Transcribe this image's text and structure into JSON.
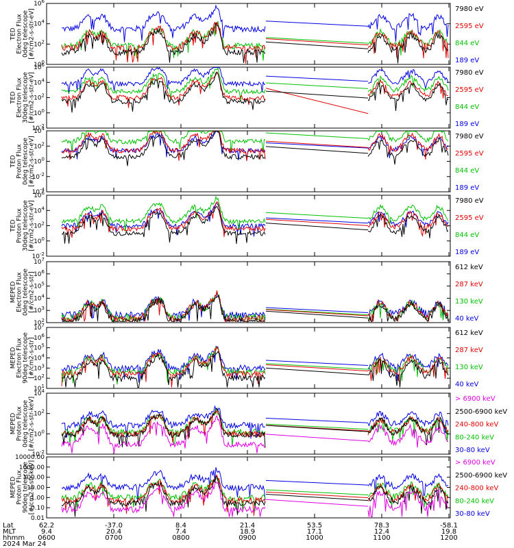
{
  "chart_data": [
    {
      "type": "line",
      "ylabel": [
        "TED",
        "Electron Flux",
        "0deg telescope",
        "[#/cm2-s-str-eV]"
      ],
      "yscale": "log",
      "ylim_exp": [
        0,
        6
      ],
      "tick_labels": [
        "10^0",
        "10^2",
        "10^4",
        "10^6"
      ],
      "legend": [
        {
          "name": "7980 eV",
          "color": "#000000"
        },
        {
          "name": "2595 eV",
          "color": "#e00000"
        },
        {
          "name": "844 eV",
          "color": "#00c000"
        },
        {
          "name": "189 eV",
          "color": "#0000e0"
        }
      ],
      "series_levels": [
        1.2,
        1.6,
        1.8,
        3.5
      ]
    },
    {
      "type": "line",
      "ylabel": [
        "TED",
        "Electron Flux",
        "30deg telescope",
        "[#/cm2-s-str-eV]"
      ],
      "yscale": "log",
      "ylim_exp": [
        -2,
        6
      ],
      "tick_labels": [
        "10^-2",
        "10^0",
        "10^2",
        "10^4",
        "10^6"
      ],
      "legend": [
        {
          "name": "7980 eV",
          "color": "#000000"
        },
        {
          "name": "2595 eV",
          "color": "#e00000"
        },
        {
          "name": "844 eV",
          "color": "#00c000"
        },
        {
          "name": "189 eV",
          "color": "#0000e0"
        }
      ],
      "series_levels": [
        1.5,
        2.0,
        2.8,
        3.8
      ]
    },
    {
      "type": "line",
      "ylabel": [
        "TED",
        "Proton Flux",
        "0deg telescope",
        "[#/cm2-s-str-eV]"
      ],
      "yscale": "log",
      "ylim_exp": [
        -4,
        4
      ],
      "tick_labels": [
        "10^-4",
        "10^-2",
        "10^0",
        "10^2",
        "10^4"
      ],
      "legend": [
        {
          "name": "7980 eV",
          "color": "#000000"
        },
        {
          "name": "2595 eV",
          "color": "#e00000"
        },
        {
          "name": "844 eV",
          "color": "#00c000"
        },
        {
          "name": "189 eV",
          "color": "#0000e0"
        }
      ],
      "series_levels": [
        0.6,
        1.4,
        2.6,
        1.4
      ]
    },
    {
      "type": "line",
      "ylabel": [
        "TED",
        "Proton Flux",
        "30deg telescope",
        "[#/cm2-s-str-eV]"
      ],
      "yscale": "log",
      "ylim_exp": [
        -2,
        6
      ],
      "tick_labels": [
        "10^-2",
        "10^0",
        "10^2",
        "10^4",
        "10^6"
      ],
      "legend": [
        {
          "name": "7980 eV",
          "color": "#000000"
        },
        {
          "name": "2595 eV",
          "color": "#e00000"
        },
        {
          "name": "844 eV",
          "color": "#00c000"
        },
        {
          "name": "189 eV",
          "color": "#0000e0"
        }
      ],
      "series_levels": [
        1.0,
        1.6,
        2.6,
        2.0
      ]
    },
    {
      "type": "line",
      "ylabel": [
        "MEPED",
        "Electron Flux",
        "0deg telescope",
        "[#/cm2-s-str]"
      ],
      "yscale": "log",
      "ylim_exp": [
        2,
        7
      ],
      "tick_labels": [
        "10^2",
        "10^3",
        "10^4",
        "10^5",
        "10^6",
        "10^7"
      ],
      "legend": [
        {
          "name": "612 keV",
          "color": "#000000"
        },
        {
          "name": "287 keV",
          "color": "#e00000"
        },
        {
          "name": "130 keV",
          "color": "#00c000"
        },
        {
          "name": "40 keV",
          "color": "#0000e0"
        }
      ],
      "series_levels": [
        2.1,
        2.3,
        2.4,
        2.6
      ]
    },
    {
      "type": "line",
      "ylabel": [
        "MEPED",
        "Electron Flux",
        "90deg telescope",
        "[#/cm2-s-str]"
      ],
      "yscale": "log",
      "ylim_exp": [
        1,
        7
      ],
      "tick_labels": [
        "10^1",
        "10^2",
        "10^3",
        "10^4",
        "10^5",
        "10^6",
        "10^7"
      ],
      "legend": [
        {
          "name": "612 keV",
          "color": "#000000"
        },
        {
          "name": "287 keV",
          "color": "#e00000"
        },
        {
          "name": "130 keV",
          "color": "#00c000"
        },
        {
          "name": "40 keV",
          "color": "#0000e0"
        }
      ],
      "series_levels": [
        2.0,
        2.4,
        2.6,
        3.0
      ]
    },
    {
      "type": "line",
      "ylabel": [
        "MEPED",
        "Proton Flux",
        "0deg telescope",
        "[#/cm2-s-str-keV]"
      ],
      "yscale": "log",
      "ylim_exp": [
        -2,
        4.3
      ],
      "tick_labels": [
        "10^-2",
        "10^0",
        "10^2",
        "10^4"
      ],
      "legend": [
        {
          "name": "> 6900 keV",
          "color": "#e000e0"
        },
        {
          "name": "2500-6900 keV",
          "color": "#000000"
        },
        {
          "name": "240-800 keV",
          "color": "#e00000"
        },
        {
          "name": "80-240 keV",
          "color": "#00c000"
        },
        {
          "name": "30-80 keV",
          "color": "#0000e0"
        }
      ],
      "series_levels": [
        -1.0,
        0.0,
        0.1,
        0.3,
        1.0
      ]
    },
    {
      "type": "line",
      "ylabel": [
        "MEPED",
        "Proton Flux",
        "90deg telescope",
        "[#/cm2-s-str-keV]"
      ],
      "yscale": "log",
      "ylim_exp": [
        -2,
        4
      ],
      "tick_labels": [
        "0.01",
        "0.10",
        "1.00",
        "10.00",
        "100.00",
        "1000.00",
        "10000.00"
      ],
      "legend": [
        {
          "name": "> 6900 keV",
          "color": "#e000e0"
        },
        {
          "name": "2500-6900 keV",
          "color": "#000000"
        },
        {
          "name": "240-800 keV",
          "color": "#e00000"
        },
        {
          "name": "80-240 keV",
          "color": "#00c000"
        },
        {
          "name": "30-80 keV",
          "color": "#0000e0"
        }
      ],
      "series_levels": [
        -1.2,
        -0.6,
        -0.3,
        0.0,
        1.0
      ]
    }
  ],
  "x_axis": {
    "row_labels": [
      "Lat",
      "MLT",
      "hhmm",
      "2024 Mar 24"
    ],
    "ticks": [
      {
        "lat": "62.2",
        "mlt": "9.4",
        "hhmm": "0600"
      },
      {
        "lat": "-37.0",
        "mlt": "20.4",
        "hhmm": "0700"
      },
      {
        "lat": "8.4",
        "mlt": "7.4",
        "hhmm": "0800"
      },
      {
        "lat": "21.4",
        "mlt": "18.9",
        "hhmm": "0900"
      },
      {
        "lat": "53.5",
        "mlt": "17.1",
        "hhmm": "1000"
      },
      {
        "lat": "78.3",
        "mlt": "12.4",
        "hhmm": "1100"
      },
      {
        "lat": "-58.1",
        "mlt": "19.8",
        "hhmm": "1200"
      }
    ]
  }
}
